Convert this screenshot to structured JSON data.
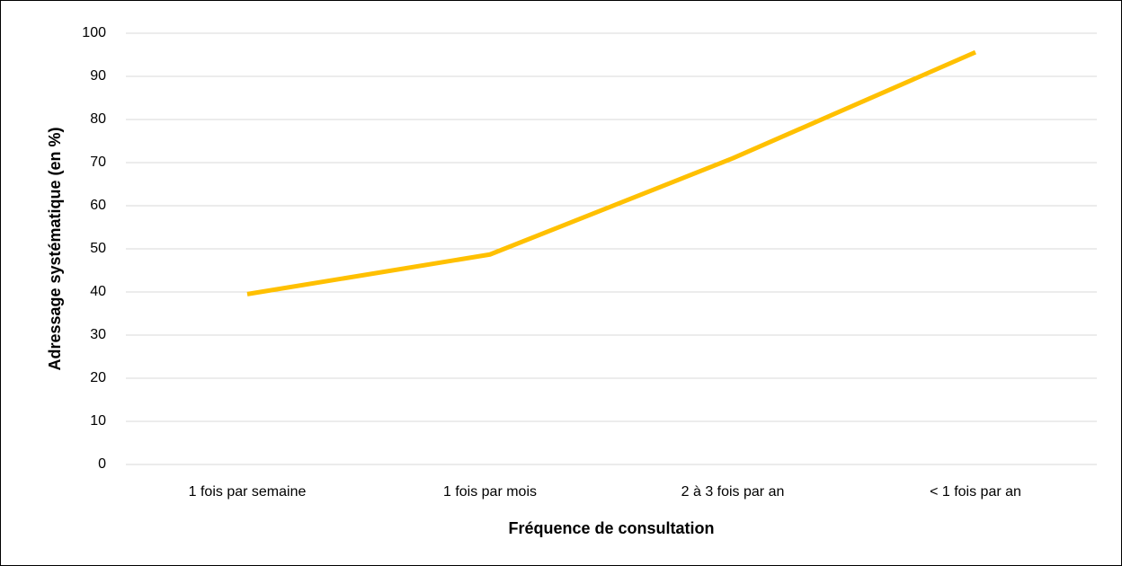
{
  "chart_data": {
    "type": "line",
    "x_label": "Fréquence de consultation",
    "y_label": "Adressage systématique (en %)",
    "categories": [
      "1 fois par semaine",
      "1 fois par mois",
      "2 à 3 fois par an",
      "< 1 fois par an"
    ],
    "series": [
      {
        "name": null,
        "color": "#ffc000",
        "values": [
          39.5,
          48.7,
          71,
          95.6
        ]
      }
    ],
    "ylim": [
      0,
      100
    ],
    "yticks": [
      0,
      10,
      20,
      30,
      40,
      50,
      60,
      70,
      80,
      90,
      100
    ],
    "grid": true
  }
}
